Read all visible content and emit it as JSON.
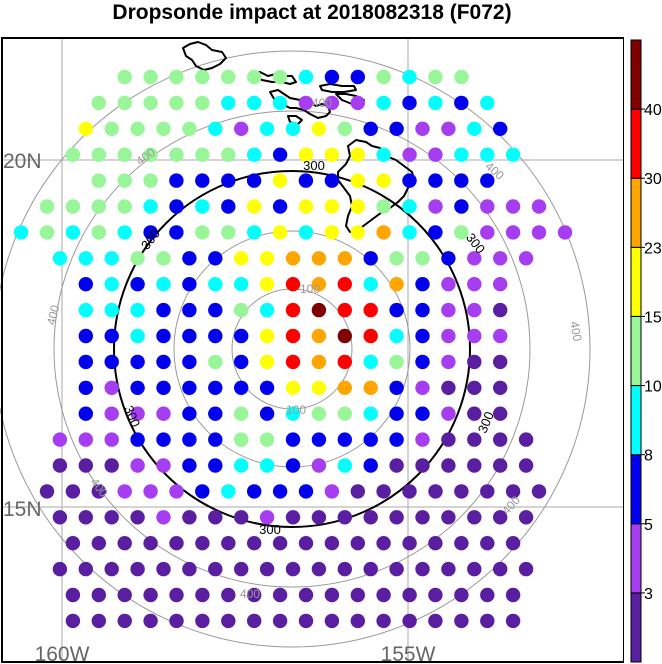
{
  "title": "Dropsonde impact at 2018082318 (F072)",
  "map": {
    "lat_labels": [
      "20N",
      "15N"
    ],
    "lon_labels": [
      "160W",
      "155W"
    ],
    "range_ring_labels": {
      "r100": "100",
      "r300": "300",
      "r400": "400"
    },
    "colors": {
      "grid": "#aaaaaa",
      "ring_gray": "#999999",
      "ring_black": "#000000",
      "coast": "#000000",
      "frame": "#000000"
    }
  },
  "colorbar": {
    "tick_labels": [
      "3",
      "5",
      "8",
      "10",
      "15",
      "23",
      "30",
      "40"
    ],
    "colors": [
      "#5a1fa0",
      "#a63df0",
      "#0000ee",
      "#00ffff",
      "#98f598",
      "#ffff00",
      "#ffa500",
      "#ff0000",
      "#800000"
    ]
  },
  "dots": {
    "rows": [
      "44444443224344",
      "4444433311132323",
      "54444313354221132",
      "444444432555311333",
      "4442222522552222",
      "44443232525554312111",
      "3434322443535563241111",
      "3334422556662442111",
      "23232335767362111",
      "33322243787722110",
      "22322225768732111",
      "22222425767342100",
      "21222222556621000",
      "21112242344322100",
      "1112222442222210000",
      "0001122332132000000",
      "00011123222100000000",
      "0000100010000000000",
      "000000000000000000",
      "0000000000000000000",
      "000000000000000000",
      "000000000000000000"
    ]
  }
}
